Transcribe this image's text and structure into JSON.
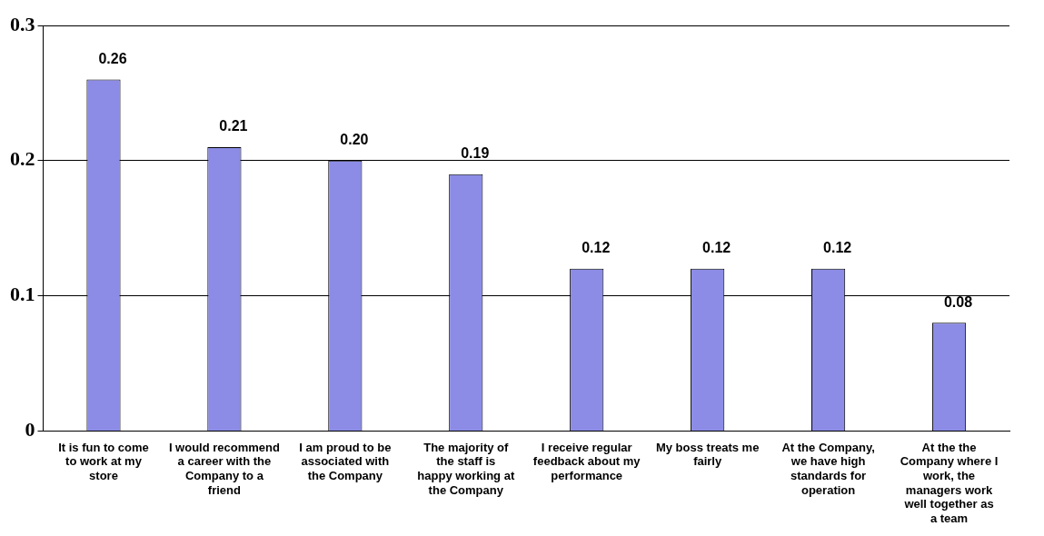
{
  "chart_data": {
    "type": "bar",
    "categories": [
      "It is fun to come to work at my store",
      "I would recommend a career with the Company to a friend",
      "I am proud to be associated with the Company",
      "The majority of the staff is happy working at the Company",
      "I receive regular feedback about my performance",
      "My boss treats me fairly",
      "At the Company, we have high standards for operation",
      "At the the Company where I work, the managers work well together as a team"
    ],
    "values": [
      0.26,
      0.21,
      0.2,
      0.19,
      0.12,
      0.12,
      0.12,
      0.08
    ],
    "value_labels": [
      "0.26",
      "0.21",
      "0.20",
      "0.19",
      "0.12",
      "0.12",
      "0.12",
      "0.08"
    ],
    "color": "#8c8ce6",
    "ylim": [
      0,
      0.3
    ],
    "yticks": [
      {
        "value": 0,
        "label": "0"
      },
      0.1,
      0.2,
      0.3
    ],
    "grid": "y"
  }
}
